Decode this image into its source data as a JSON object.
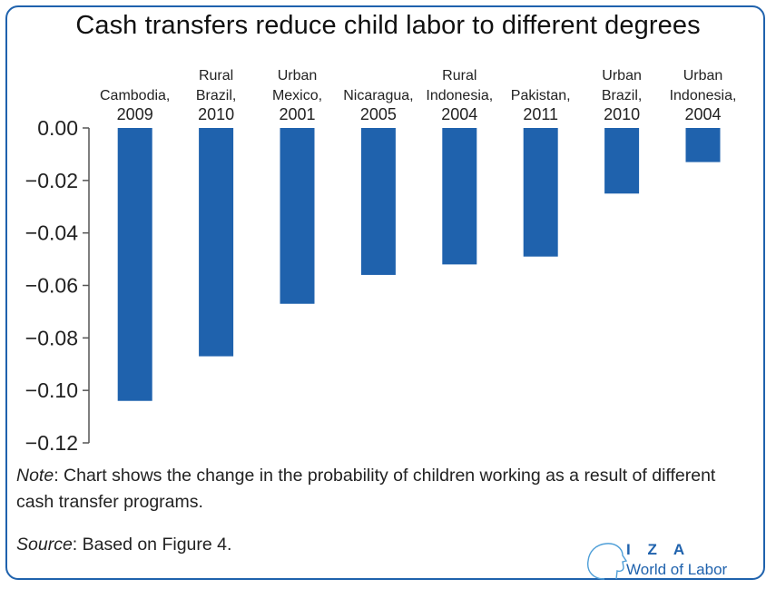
{
  "title": "Cash transfers reduce child labor to different degrees",
  "note_label": "Note",
  "note_text": ": Chart shows the change in the probability of children working as a result of different cash transfer programs.",
  "source_label": "Source",
  "source_text": ": Based on Figure 4.",
  "logo": {
    "iza": "I Z A",
    "wol": "World of Labor"
  },
  "colors": {
    "bar": "#1f62ad",
    "frame": "#1f62ad",
    "axis": "#555555"
  },
  "chart_data": {
    "type": "bar",
    "title": "Cash transfers reduce child labor to different degrees",
    "categories": [
      [
        "Cambodia,",
        "2009"
      ],
      [
        "Rural",
        "Brazil,",
        "2010"
      ],
      [
        "Urban",
        "Mexico,",
        "2001"
      ],
      [
        "Nicaragua,",
        "2005"
      ],
      [
        "Rural",
        "Indonesia,",
        "2004"
      ],
      [
        "Pakistan,",
        "2011"
      ],
      [
        "Urban",
        "Brazil,",
        "2010"
      ],
      [
        "Urban",
        "Indonesia,",
        "2004"
      ]
    ],
    "values": [
      -0.104,
      -0.087,
      -0.067,
      -0.056,
      -0.052,
      -0.049,
      -0.025,
      -0.013
    ],
    "ylim": [
      -0.12,
      0.0
    ],
    "yticks": [
      "0.00",
      "−0.02",
      "−0.04",
      "−0.06",
      "−0.08",
      "−0.10",
      "−0.12"
    ],
    "ytick_values": [
      0,
      -0.02,
      -0.04,
      -0.06,
      -0.08,
      -0.1,
      -0.12
    ],
    "category_label_position": "top",
    "grid": false,
    "legend": "none",
    "xlabel": "",
    "ylabel": ""
  }
}
